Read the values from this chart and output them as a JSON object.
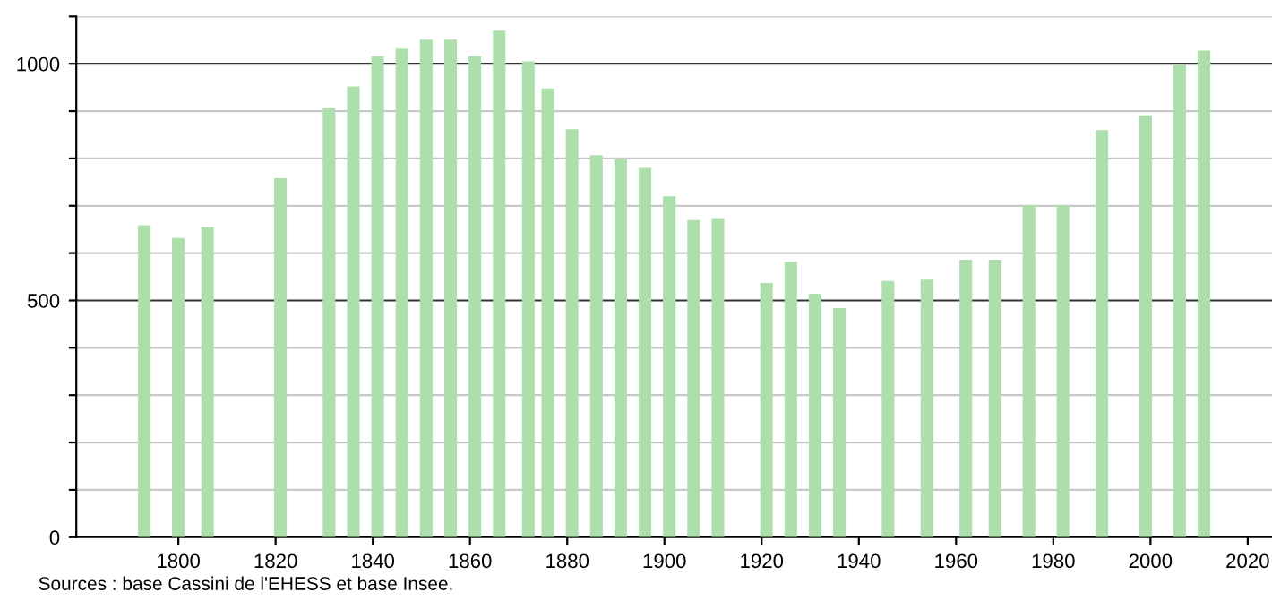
{
  "chart_data": {
    "type": "bar",
    "x": [
      1793,
      1800,
      1806,
      1821,
      1831,
      1836,
      1841,
      1846,
      1851,
      1856,
      1861,
      1866,
      1872,
      1876,
      1881,
      1886,
      1891,
      1896,
      1901,
      1906,
      1911,
      1921,
      1926,
      1931,
      1936,
      1946,
      1954,
      1962,
      1968,
      1975,
      1982,
      1990,
      1999,
      2006,
      2011
    ],
    "values": [
      659,
      632,
      655,
      758,
      906,
      952,
      1016,
      1032,
      1051,
      1051,
      1016,
      1070,
      1005,
      948,
      862,
      807,
      799,
      780,
      720,
      670,
      674,
      537,
      582,
      514,
      484,
      541,
      544,
      586,
      586,
      701,
      701,
      860,
      891,
      997,
      1028
    ],
    "color": "#addfad",
    "xlim": [
      1779,
      2025
    ],
    "xticks": [
      1800,
      1820,
      1840,
      1860,
      1880,
      1900,
      1920,
      1940,
      1960,
      1980,
      2000,
      2020
    ],
    "ylim": [
      0,
      1100
    ],
    "yticks": [
      0,
      {
        "value": 100,
        "label": null
      },
      {
        "value": 200,
        "label": null
      },
      {
        "value": 300,
        "label": null
      },
      {
        "value": 400,
        "label": null
      },
      500,
      {
        "value": 600,
        "label": null
      },
      {
        "value": 700,
        "label": null
      },
      {
        "value": 800,
        "label": null
      },
      {
        "value": 900,
        "label": null
      },
      1000,
      {
        "value": 1100,
        "label": null
      }
    ],
    "grid": "y",
    "annotations": [
      "Sources : base Cassini de l'EHESS et base Insee."
    ]
  }
}
